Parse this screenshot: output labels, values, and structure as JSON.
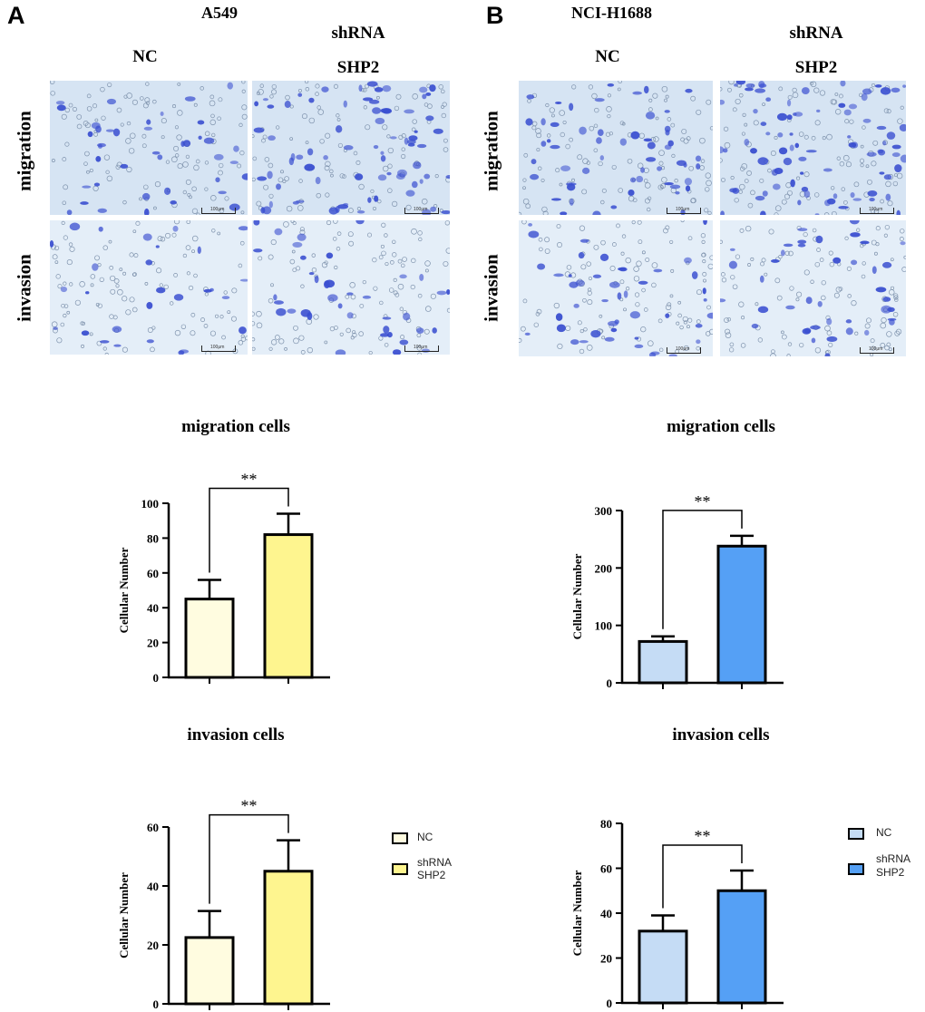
{
  "panels": [
    {
      "letter": "A",
      "cell_line": "A549",
      "col_nc": "NC",
      "col_sh_1": "shRNA",
      "col_sh_2": "SHP2",
      "row_migration": "migration",
      "row_invasion": "invasion",
      "scale_label": "100μm",
      "legend": {
        "nc": "NC",
        "sh_1": "shRNA",
        "sh_2": "SHP2"
      }
    },
    {
      "letter": "B",
      "cell_line": "NCI-H1688",
      "col_nc": "NC",
      "col_sh_1": "shRNA",
      "col_sh_2": "SHP2",
      "row_migration": "migration",
      "row_invasion": "invasion",
      "scale_label": "100μm",
      "legend": {
        "nc": "NC",
        "sh_1": "shRNA",
        "sh_2": "SHP2"
      }
    }
  ],
  "colors": {
    "stain": "#3a4fd0",
    "a_nc": "#fffce0",
    "a_sh": "#fef58f",
    "b_nc": "#c5dcf5",
    "b_sh": "#55a0f5"
  },
  "chart_data": [
    {
      "type": "bar",
      "title": "migration cells",
      "panel": "A",
      "categories": [
        "NC",
        "shRNA SHP2"
      ],
      "values": [
        45,
        82
      ],
      "errors": [
        11,
        12
      ],
      "ylabel": "Cellular Number",
      "ylim": [
        0,
        100
      ],
      "yticks": [
        0,
        20,
        40,
        60,
        80,
        100
      ],
      "significance": "**",
      "colors": [
        "#fffce0",
        "#fef58f"
      ]
    },
    {
      "type": "bar",
      "title": "invasion cells",
      "panel": "A",
      "categories": [
        "NC",
        "shRNA SHP2"
      ],
      "values": [
        22.5,
        45
      ],
      "errors": [
        9,
        10.5
      ],
      "ylabel": "Cellular Number",
      "ylim": [
        0,
        60
      ],
      "yticks": [
        0,
        20,
        40,
        60
      ],
      "significance": "**",
      "colors": [
        "#fffce0",
        "#fef58f"
      ]
    },
    {
      "type": "bar",
      "title": "migration cells",
      "panel": "B",
      "categories": [
        "NC",
        "shRNA SHP2"
      ],
      "values": [
        72,
        238
      ],
      "errors": [
        9,
        18
      ],
      "ylabel": "Cellular Number",
      "ylim": [
        0,
        300
      ],
      "yticks": [
        0,
        100,
        200,
        300
      ],
      "significance": "**",
      "colors": [
        "#c5dcf5",
        "#55a0f5"
      ]
    },
    {
      "type": "bar",
      "title": "invasion cells",
      "panel": "B",
      "categories": [
        "NC",
        "shRNA SHP2"
      ],
      "values": [
        32,
        50
      ],
      "errors": [
        7,
        9
      ],
      "ylabel": "Cellular Number",
      "ylim": [
        0,
        80
      ],
      "yticks": [
        0,
        20,
        40,
        60,
        80
      ],
      "significance": "**",
      "colors": [
        "#c5dcf5",
        "#55a0f5"
      ]
    }
  ]
}
